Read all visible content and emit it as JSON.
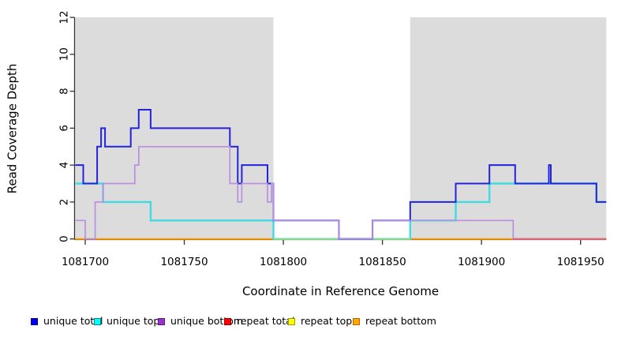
{
  "chart_data": {
    "type": "line",
    "subtype": "step-coverage",
    "title": "",
    "xlabel": "Coordinate in Reference Genome",
    "ylabel": "Read Coverage Depth",
    "xlim": [
      1081695,
      1081963
    ],
    "ylim": [
      0,
      12
    ],
    "x_ticks": [
      1081700,
      1081750,
      1081800,
      1081850,
      1081900,
      1081950
    ],
    "y_ticks": [
      0,
      2,
      4,
      6,
      8,
      10,
      12
    ],
    "grid": "off",
    "legend_position": "bottom",
    "background_color": "#ffffff",
    "shaded_regions": [
      {
        "name": "repeat-masked-left",
        "from": 1081695,
        "to": 1081795,
        "color": "#dcdcdc"
      },
      {
        "name": "repeat-masked-right",
        "from": 1081864,
        "to": 1081963,
        "color": "#dcdcdc"
      }
    ],
    "series": [
      {
        "name": "unique total",
        "color": "#2323dc",
        "runs": [
          [
            1081695,
            1081699,
            4
          ],
          [
            1081699,
            1081706,
            3
          ],
          [
            1081706,
            1081708,
            5
          ],
          [
            1081708,
            1081710,
            6
          ],
          [
            1081710,
            1081723,
            5
          ],
          [
            1081723,
            1081727,
            6
          ],
          [
            1081727,
            1081733,
            7
          ],
          [
            1081733,
            1081773,
            6
          ],
          [
            1081773,
            1081777,
            5
          ],
          [
            1081777,
            1081779,
            3
          ],
          [
            1081779,
            1081792,
            4
          ],
          [
            1081792,
            1081795,
            3
          ],
          [
            1081795,
            1081828,
            1
          ],
          [
            1081828,
            1081845,
            0
          ],
          [
            1081845,
            1081864,
            1
          ],
          [
            1081864,
            1081887,
            2
          ],
          [
            1081887,
            1081904,
            3
          ],
          [
            1081904,
            1081917,
            4
          ],
          [
            1081917,
            1081934,
            3
          ],
          [
            1081934,
            1081935,
            4
          ],
          [
            1081935,
            1081958,
            3
          ],
          [
            1081958,
            1081963,
            2
          ]
        ]
      },
      {
        "name": "unique top",
        "color": "#3edce2",
        "runs": [
          [
            1081695,
            1081709,
            3
          ],
          [
            1081709,
            1081733,
            2
          ],
          [
            1081733,
            1081795,
            1
          ],
          [
            1081795,
            1081864,
            0
          ],
          [
            1081864,
            1081887,
            1
          ],
          [
            1081887,
            1081904,
            2
          ],
          [
            1081904,
            1081958,
            3
          ],
          [
            1081958,
            1081963,
            2
          ]
        ]
      },
      {
        "name": "unique bottom",
        "color": "#bb8fe0",
        "runs": [
          [
            1081695,
            1081700,
            1
          ],
          [
            1081700,
            1081705,
            0
          ],
          [
            1081705,
            1081709,
            2
          ],
          [
            1081709,
            1081725,
            3
          ],
          [
            1081725,
            1081727,
            4
          ],
          [
            1081727,
            1081773,
            5
          ],
          [
            1081773,
            1081777,
            3
          ],
          [
            1081777,
            1081779,
            2
          ],
          [
            1081779,
            1081792,
            3
          ],
          [
            1081792,
            1081794,
            2
          ],
          [
            1081794,
            1081795,
            3
          ],
          [
            1081795,
            1081828,
            1
          ],
          [
            1081828,
            1081845,
            0
          ],
          [
            1081845,
            1081916,
            1
          ],
          [
            1081916,
            1081963,
            0
          ]
        ]
      },
      {
        "name": "repeat total",
        "color": "#ee2222",
        "runs": [
          [
            1081695,
            1081963,
            0
          ]
        ]
      },
      {
        "name": "repeat top",
        "color": "#ffff33",
        "runs": [
          [
            1081695,
            1081963,
            0
          ]
        ]
      },
      {
        "name": "repeat bottom",
        "color": "#ff9d00",
        "runs": [
          [
            1081695,
            1081963,
            0
          ]
        ]
      }
    ],
    "baseline_overlays": [
      {
        "name": "overlap-blend-green",
        "color": "#8fd98f",
        "from": 1081795,
        "to": 1081864,
        "value": 0,
        "layer": "under-totals"
      },
      {
        "name": "overlap-blend-pink",
        "color": "#dd6688",
        "from": 1081916,
        "to": 1081963,
        "value": 0,
        "layer": "top"
      }
    ]
  },
  "legend": {
    "items": [
      {
        "label": "unique total",
        "color": "#0000ee",
        "border": "#000088"
      },
      {
        "label": "unique top",
        "color": "#00ffff",
        "border": "#008b8b"
      },
      {
        "label": "unique bottom",
        "color": "#9932cc",
        "border": "#5c1a80"
      },
      {
        "label": "repeat total",
        "color": "#ff0000",
        "border": "#990000"
      },
      {
        "label": "repeat top",
        "color": "#ffff00",
        "border": "#999900"
      },
      {
        "label": "repeat bottom",
        "color": "#ffa500",
        "border": "#b36b00"
      }
    ]
  },
  "axes": {
    "tick_color": "#333333",
    "axis_color": "#333333",
    "label_color": "#000000"
  }
}
